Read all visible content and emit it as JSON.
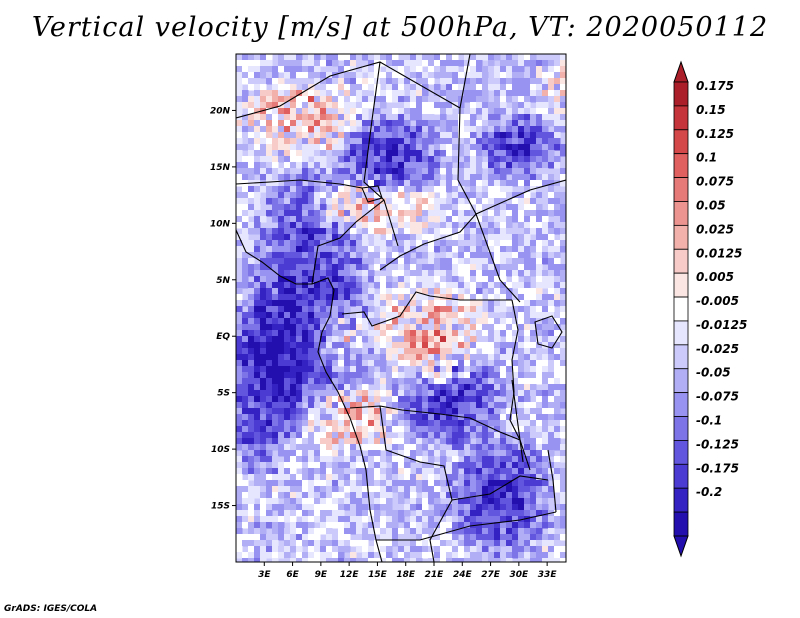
{
  "title": "Vertical velocity [m/s] at 500hPa, VT: 2020050112",
  "credit": "GrADS: IGES/COLA",
  "map": {
    "lon_range": [
      0,
      35
    ],
    "lat_range": [
      -20,
      25
    ],
    "lat_ticks": [
      {
        "value": 20,
        "label": "20N"
      },
      {
        "value": 15,
        "label": "15N"
      },
      {
        "value": 10,
        "label": "10N"
      },
      {
        "value": 5,
        "label": "5N"
      },
      {
        "value": 0,
        "label": "EQ"
      },
      {
        "value": -5,
        "label": "5S"
      },
      {
        "value": -10,
        "label": "10S"
      },
      {
        "value": -15,
        "label": "15S"
      }
    ],
    "lon_ticks": [
      {
        "value": 3,
        "label": "3E"
      },
      {
        "value": 6,
        "label": "6E"
      },
      {
        "value": 9,
        "label": "9E"
      },
      {
        "value": 12,
        "label": "12E"
      },
      {
        "value": 15,
        "label": "15E"
      },
      {
        "value": 18,
        "label": "18E"
      },
      {
        "value": 21,
        "label": "21E"
      },
      {
        "value": 24,
        "label": "24E"
      },
      {
        "value": 27,
        "label": "27E"
      },
      {
        "value": 30,
        "label": "30E"
      },
      {
        "value": 33,
        "label": "33E"
      }
    ]
  },
  "colorbar": {
    "labels": [
      "0.175",
      "0.15",
      "0.125",
      "0.1",
      "0.075",
      "0.05",
      "0.025",
      "0.0125",
      "0.005",
      "-0.005",
      "-0.0125",
      "-0.025",
      "-0.05",
      "-0.075",
      "-0.1",
      "-0.125",
      "-0.175",
      "-0.2"
    ],
    "colors": [
      "#aa1f2a",
      "#c5343a",
      "#d4484a",
      "#e05f5f",
      "#e57a78",
      "#ec9590",
      "#f2b1ab",
      "#f7ccc8",
      "#fbe6e4",
      "#ffffff",
      "#e6e6ff",
      "#cccafb",
      "#b1aef6",
      "#9892f0",
      "#7d74e8",
      "#6356de",
      "#4b3bd2",
      "#3422c2",
      "#220fae"
    ]
  }
}
